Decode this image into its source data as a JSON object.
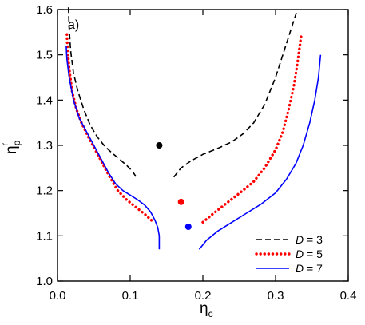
{
  "chart_data": {
    "type": "line",
    "panel_label": "a)",
    "xlabel": {
      "base": "η",
      "sub": "c"
    },
    "ylabel": {
      "base": "η",
      "sub": "p",
      "sup": "r"
    },
    "xlim": [
      0.0,
      0.4
    ],
    "ylim": [
      1.0,
      1.6
    ],
    "xticks": [
      {
        "value": 0.0,
        "label": "0.0"
      },
      {
        "value": 0.1,
        "label": "0.1"
      },
      {
        "value": 0.2,
        "label": "0.2"
      },
      {
        "value": 0.3,
        "label": "0.3"
      },
      {
        "value": 0.4,
        "label": "0.4"
      }
    ],
    "yticks": [
      {
        "value": 1.0,
        "label": "1.0"
      },
      {
        "value": 1.1,
        "label": "1.1"
      },
      {
        "value": 1.2,
        "label": "1.2"
      },
      {
        "value": 1.3,
        "label": "1.3"
      },
      {
        "value": 1.4,
        "label": "1.4"
      },
      {
        "value": 1.5,
        "label": "1.5"
      },
      {
        "value": 1.6,
        "label": "1.6"
      }
    ],
    "grid": false,
    "legend_position": "bottom-right",
    "series": [
      {
        "name": "D = 3",
        "color": "#000000",
        "style": "dashed",
        "left_branch": [
          [
            0.015,
            1.605
          ],
          [
            0.016,
            1.56
          ],
          [
            0.018,
            1.51
          ],
          [
            0.022,
            1.46
          ],
          [
            0.028,
            1.42
          ],
          [
            0.036,
            1.38
          ],
          [
            0.045,
            1.345
          ],
          [
            0.055,
            1.318
          ],
          [
            0.065,
            1.298
          ],
          [
            0.075,
            1.283
          ],
          [
            0.085,
            1.27
          ],
          [
            0.095,
            1.256
          ],
          [
            0.103,
            1.243
          ],
          [
            0.11,
            1.226
          ]
        ],
        "right_branch": [
          [
            0.16,
            1.23
          ],
          [
            0.17,
            1.25
          ],
          [
            0.183,
            1.265
          ],
          [
            0.2,
            1.28
          ],
          [
            0.22,
            1.293
          ],
          [
            0.24,
            1.308
          ],
          [
            0.255,
            1.325
          ],
          [
            0.27,
            1.35
          ],
          [
            0.285,
            1.39
          ],
          [
            0.3,
            1.45
          ],
          [
            0.312,
            1.51
          ],
          [
            0.322,
            1.56
          ],
          [
            0.33,
            1.6
          ]
        ],
        "point": [
          0.14,
          1.3
        ]
      },
      {
        "name": "D = 5",
        "color": "#ff0000",
        "style": "dotted",
        "left_branch": [
          [
            0.013,
            1.545
          ],
          [
            0.014,
            1.51
          ],
          [
            0.016,
            1.47
          ],
          [
            0.02,
            1.42
          ],
          [
            0.026,
            1.38
          ],
          [
            0.033,
            1.35
          ],
          [
            0.042,
            1.32
          ],
          [
            0.052,
            1.29
          ],
          [
            0.062,
            1.26
          ],
          [
            0.072,
            1.23
          ],
          [
            0.083,
            1.2
          ],
          [
            0.095,
            1.18
          ],
          [
            0.108,
            1.163
          ],
          [
            0.12,
            1.148
          ],
          [
            0.13,
            1.133
          ]
        ],
        "right_branch": [
          [
            0.2,
            1.13
          ],
          [
            0.215,
            1.15
          ],
          [
            0.235,
            1.175
          ],
          [
            0.255,
            1.2
          ],
          [
            0.27,
            1.22
          ],
          [
            0.285,
            1.25
          ],
          [
            0.3,
            1.29
          ],
          [
            0.31,
            1.33
          ],
          [
            0.318,
            1.38
          ],
          [
            0.325,
            1.43
          ],
          [
            0.33,
            1.48
          ],
          [
            0.335,
            1.54
          ]
        ],
        "point": [
          0.17,
          1.175
        ]
      },
      {
        "name": "D = 7",
        "color": "#0000ff",
        "style": "solid",
        "left_branch": [
          [
            0.012,
            1.52
          ],
          [
            0.013,
            1.49
          ],
          [
            0.016,
            1.45
          ],
          [
            0.022,
            1.4
          ],
          [
            0.03,
            1.36
          ],
          [
            0.04,
            1.33
          ],
          [
            0.05,
            1.3
          ],
          [
            0.06,
            1.27
          ],
          [
            0.07,
            1.24
          ],
          [
            0.08,
            1.215
          ],
          [
            0.09,
            1.2
          ],
          [
            0.1,
            1.19
          ],
          [
            0.11,
            1.18
          ],
          [
            0.12,
            1.168
          ],
          [
            0.128,
            1.153
          ],
          [
            0.134,
            1.135
          ],
          [
            0.138,
            1.118
          ],
          [
            0.14,
            1.1
          ],
          [
            0.14,
            1.07
          ]
        ],
        "right_branch": [
          [
            0.195,
            1.07
          ],
          [
            0.205,
            1.09
          ],
          [
            0.22,
            1.11
          ],
          [
            0.24,
            1.13
          ],
          [
            0.26,
            1.15
          ],
          [
            0.28,
            1.17
          ],
          [
            0.3,
            1.195
          ],
          [
            0.315,
            1.225
          ],
          [
            0.328,
            1.26
          ],
          [
            0.338,
            1.3
          ],
          [
            0.347,
            1.35
          ],
          [
            0.354,
            1.4
          ],
          [
            0.359,
            1.45
          ],
          [
            0.362,
            1.5
          ]
        ],
        "point": [
          0.18,
          1.12
        ]
      }
    ]
  }
}
